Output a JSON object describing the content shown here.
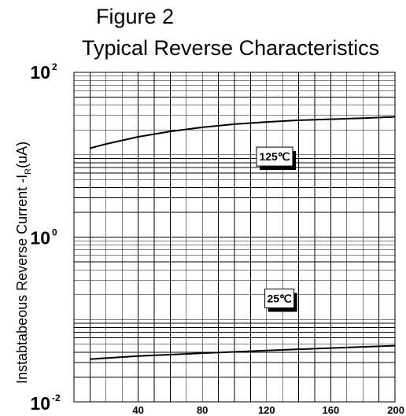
{
  "header": {
    "figure": "Figure 2",
    "title": "Typical Reverse Characteristics"
  },
  "chart_data": {
    "type": "line",
    "title": "Typical Reverse Characteristics",
    "xlabel": "",
    "ylabel": {
      "main": "Instabtabeous Reverse Current -I",
      "subscript": "R",
      "unit": "(uA)"
    },
    "xlim": [
      0,
      200
    ],
    "ylim": [
      0.01,
      100
    ],
    "yscale": "log",
    "grid": true,
    "xticks": [
      40,
      80,
      120,
      160,
      200
    ],
    "yticks": [
      {
        "value": 100,
        "base": "10",
        "exp": "2"
      },
      {
        "value": 1,
        "base": "10",
        "exp": "0"
      },
      {
        "value": 0.01,
        "base": "10",
        "exp": "-2"
      }
    ],
    "series": [
      {
        "name": "125℃",
        "x": [
          10,
          20,
          40,
          60,
          80,
          100,
          120,
          140,
          160,
          180,
          200
        ],
        "y": [
          12,
          13.5,
          16.5,
          19.2,
          21.5,
          23.5,
          25.0,
          26.2,
          27.0,
          27.8,
          28.8
        ]
      },
      {
        "name": "25℃",
        "x": [
          10,
          40,
          80,
          120,
          160,
          200
        ],
        "y": [
          0.033,
          0.036,
          0.039,
          0.042,
          0.045,
          0.048
        ]
      }
    ],
    "annotations": [
      {
        "text": "125℃",
        "x": 125,
        "y": 9.5
      },
      {
        "text": "25℃",
        "x": 128,
        "y": 0.18
      }
    ]
  }
}
